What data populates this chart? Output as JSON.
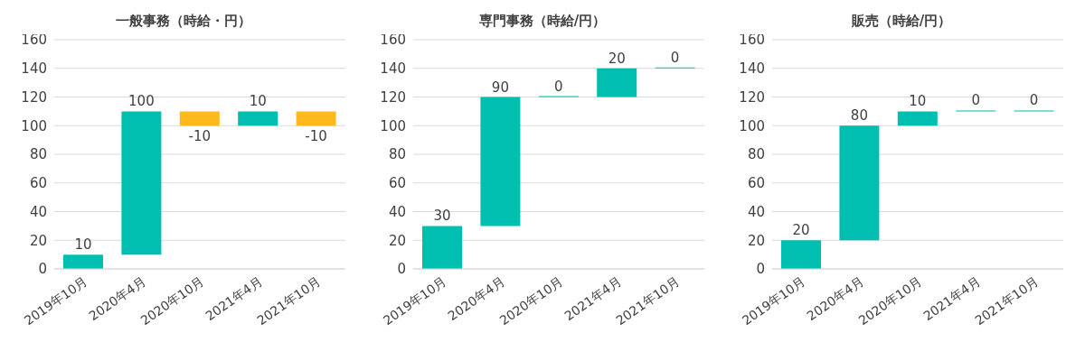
{
  "chart_data": [
    {
      "type": "bar",
      "title": "一般事務（時給・円）",
      "categories": [
        "2019年10月",
        "2020年4月",
        "2020年10月",
        "2021年4月",
        "2021年10月"
      ],
      "base": [
        0,
        10,
        110,
        100,
        110
      ],
      "values": [
        10,
        100,
        -10,
        10,
        -10
      ],
      "colors": [
        "#00bfb0",
        "#00bfb0",
        "#ffb91d",
        "#00bfb0",
        "#ffb91d"
      ],
      "ylim": [
        0,
        160
      ],
      "yticks": [
        0,
        20,
        40,
        60,
        80,
        100,
        120,
        140,
        160
      ],
      "grid": "y",
      "data_labels": true
    },
    {
      "type": "bar",
      "title": "専門事務（時給/円）",
      "categories": [
        "2019年10月",
        "2020年4月",
        "2020年10月",
        "2021年4月",
        "2021年10月"
      ],
      "base": [
        0,
        30,
        120,
        120,
        140
      ],
      "values": [
        30,
        90,
        0,
        20,
        0
      ],
      "colors": [
        "#00bfb0",
        "#00bfb0",
        "#00bfb0",
        "#00bfb0",
        "#00bfb0"
      ],
      "ylim": [
        0,
        160
      ],
      "yticks": [
        0,
        20,
        40,
        60,
        80,
        100,
        120,
        140,
        160
      ],
      "grid": "y",
      "data_labels": true
    },
    {
      "type": "bar",
      "title": "販売（時給/円）",
      "categories": [
        "2019年10月",
        "2020年4月",
        "2020年10月",
        "2021年4月",
        "2021年10月"
      ],
      "base": [
        0,
        20,
        100,
        110,
        110
      ],
      "values": [
        20,
        80,
        10,
        0,
        0
      ],
      "colors": [
        "#00bfb0",
        "#00bfb0",
        "#00bfb0",
        "#00bfb0",
        "#00bfb0"
      ],
      "ylim": [
        0,
        160
      ],
      "yticks": [
        0,
        20,
        40,
        60,
        80,
        100,
        120,
        140,
        160
      ],
      "grid": "y",
      "data_labels": true
    }
  ]
}
